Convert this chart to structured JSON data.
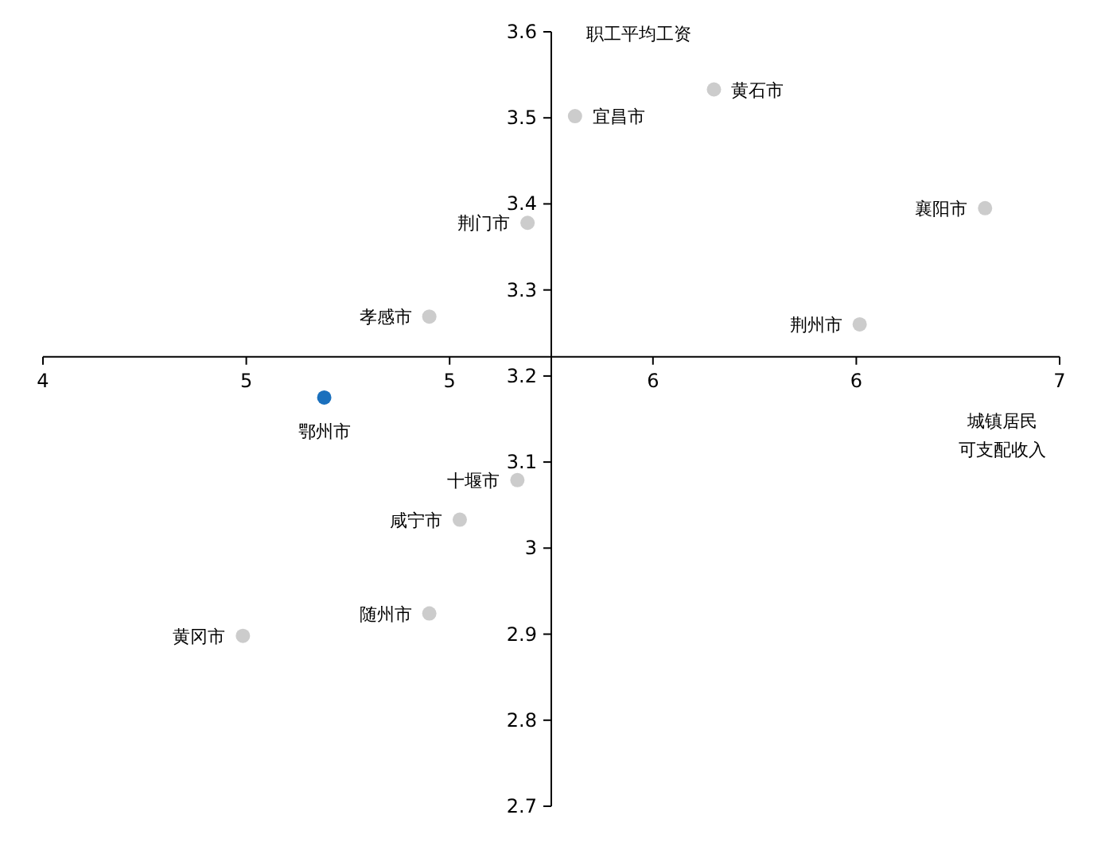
{
  "chart_data": {
    "type": "scatter",
    "xlabel": "城镇居民可支配收入",
    "ylabel": "职工平均工资",
    "marker": "circle",
    "series": [
      {
        "x": [
          5.98,
          5.57,
          6.78,
          5.43,
          5.14,
          6.41,
          4.83,
          5.4,
          5.23,
          5.14,
          4.59
        ],
        "values": [
          3.533,
          3.502,
          3.395,
          3.378,
          3.269,
          3.26,
          3.175,
          3.079,
          3.033,
          2.924,
          2.898
        ],
        "colors": [
          "#cccccc",
          "#cccccc",
          "#cccccc",
          "#cccccc",
          "#cccccc",
          "#cccccc",
          "#1a70bd",
          "#cccccc",
          "#cccccc",
          "#cccccc",
          "#cccccc"
        ]
      }
    ],
    "annotations": [
      {
        "text": "黄石市",
        "x": 5.98,
        "y": 3.533
      },
      {
        "text": "宜昌市",
        "x": 5.57,
        "y": 3.502
      },
      {
        "text": "襄阳市",
        "x": 6.78,
        "y": 3.395
      },
      {
        "text": "荆门市",
        "x": 5.43,
        "y": 3.378
      },
      {
        "text": "孝感市",
        "x": 5.14,
        "y": 3.269
      },
      {
        "text": "荆州市",
        "x": 6.41,
        "y": 3.26
      },
      {
        "text": "鄂州市",
        "x": 4.83,
        "y": 3.175
      },
      {
        "text": "十堰市",
        "x": 5.4,
        "y": 3.079
      },
      {
        "text": "咸宁市",
        "x": 5.23,
        "y": 3.033
      },
      {
        "text": "随州市",
        "x": 5.14,
        "y": 2.924
      },
      {
        "text": "黄冈市",
        "x": 4.59,
        "y": 2.898
      }
    ],
    "xlim": [
      4,
      7
    ],
    "ylim": [
      2.7,
      3.6
    ],
    "xticks": [
      4,
      {
        "value": 4.6,
        "label": "5"
      },
      {
        "value": 5.2,
        "label": "5"
      },
      {
        "value": 5.8,
        "label": "6"
      },
      {
        "value": 6.4,
        "label": "6"
      },
      7
    ],
    "yticks": [
      2.7,
      2.8,
      2.9,
      3,
      3.1,
      3.2,
      3.3,
      3.4,
      3.5,
      3.6
    ]
  }
}
